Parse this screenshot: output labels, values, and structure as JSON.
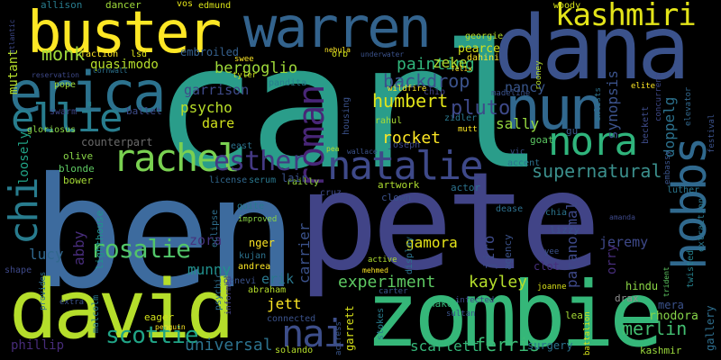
{
  "words": [
    {
      "text": "carl",
      "color": "#2a9d8a"
    },
    {
      "text": "ben",
      "color": "#3d6b9e"
    },
    {
      "text": "pete",
      "color": "#414487"
    },
    {
      "text": "zombie",
      "color": "#35b779"
    },
    {
      "text": "david",
      "color": "#b5de2b"
    },
    {
      "text": "dana",
      "color": "#3b528b"
    },
    {
      "text": "warren",
      "color": "#33638d"
    },
    {
      "text": "buster",
      "color": "#fde725"
    },
    {
      "text": "nun",
      "color": "#31688e"
    },
    {
      "text": "erica",
      "color": "#2c728e"
    },
    {
      "text": "ellie",
      "color": "#287d8e"
    },
    {
      "text": "kashmiri",
      "color": "#e3e419"
    },
    {
      "text": "natalie",
      "color": "#3e4989"
    },
    {
      "text": "rachel",
      "color": "#7ad151"
    },
    {
      "text": "nora",
      "color": "#2fb47c"
    },
    {
      "text": "hobbs",
      "color": "#30698e"
    },
    {
      "text": "chi",
      "color": "#287c8e"
    },
    {
      "text": "esther",
      "color": "#443983"
    },
    {
      "text": "roman",
      "color": "#482677"
    },
    {
      "text": "nai",
      "color": "#3d4e8a"
    },
    {
      "text": "rosalie",
      "color": "#52c569"
    },
    {
      "text": "scottie",
      "color": "#20a486"
    },
    {
      "text": "monk",
      "color": "#a0da39"
    },
    {
      "text": "painting",
      "color": "#31b57b"
    },
    {
      "text": "humbert",
      "color": "#e2e418"
    },
    {
      "text": "backdrop",
      "color": "#3b528b"
    },
    {
      "text": "pluto",
      "color": "#3e4989"
    },
    {
      "text": "supernatural",
      "color": "#3b8f8c"
    },
    {
      "text": "experiment",
      "color": "#5ec962"
    },
    {
      "text": "kayley",
      "color": "#b5de2b"
    },
    {
      "text": "universal",
      "color": "#2c728e"
    },
    {
      "text": "ferris",
      "color": "#3bbb75"
    },
    {
      "text": "scarlett",
      "color": "#35b779"
    },
    {
      "text": "merlin",
      "color": "#42be71"
    },
    {
      "text": "bergoglio",
      "color": "#9fda3a"
    },
    {
      "text": "zeke",
      "color": "#addc30"
    },
    {
      "text": "rocket",
      "color": "#fde725"
    },
    {
      "text": "sally",
      "color": "#95d840"
    },
    {
      "text": "nancy",
      "color": "#39568c"
    },
    {
      "text": "garrison",
      "color": "#3e4a89"
    },
    {
      "text": "psycho",
      "color": "#b8de29"
    },
    {
      "text": "dare",
      "color": "#d0e11c"
    },
    {
      "text": "counterpart",
      "color": "#6a6a6a"
    },
    {
      "text": "quasimodo",
      "color": "#b5de2b"
    },
    {
      "text": "embroiled",
      "color": "#35608d"
    },
    {
      "text": "abby",
      "color": "#472c7a"
    },
    {
      "text": "zora",
      "color": "#46337e"
    },
    {
      "text": "munny",
      "color": "#21908d"
    },
    {
      "text": "erik",
      "color": "#2a788e"
    },
    {
      "text": "jett",
      "color": "#fde725"
    },
    {
      "text": "gamora",
      "color": "#e5e419"
    },
    {
      "text": "jeremy",
      "color": "#3e4989"
    },
    {
      "text": "lucy",
      "color": "#31688e"
    },
    {
      "text": "paranormal",
      "color": "#3e4989"
    },
    {
      "text": "carrier",
      "color": "#3b528b"
    },
    {
      "text": "jiro",
      "color": "#3e4a89"
    },
    {
      "text": "synopsis",
      "color": "#3b528b"
    },
    {
      "text": "doppelg",
      "color": "#2c728e"
    },
    {
      "text": "mutant",
      "color": "#b5de2b"
    },
    {
      "text": "loosely",
      "color": "#20a386"
    },
    {
      "text": "allison",
      "color": "#287c8e"
    },
    {
      "text": "dancer",
      "color": "#9fda3a"
    },
    {
      "text": "vos",
      "color": "#e5e419"
    },
    {
      "text": "edmund",
      "color": "#d8e219"
    },
    {
      "text": "pearce",
      "color": "#d2e21b"
    },
    {
      "text": "georgie",
      "color": "#b5de2b"
    },
    {
      "text": "dahini",
      "color": "#fde725"
    },
    {
      "text": "woody",
      "color": "#d5e21a"
    },
    {
      "text": "orry",
      "color": "#472d7b"
    },
    {
      "text": "gallery",
      "color": "#2e6e8e"
    },
    {
      "text": "hindu",
      "color": "#8bd646"
    },
    {
      "text": "mera",
      "color": "#3b528b"
    },
    {
      "text": "rhodora",
      "color": "#86d549"
    },
    {
      "text": "kashmir",
      "color": "#9bd93c"
    },
    {
      "text": "drax",
      "color": "#8f8f8f"
    },
    {
      "text": "lea",
      "color": "#a5db36"
    },
    {
      "text": "clot",
      "color": "#462f7c"
    },
    {
      "text": "lizzy",
      "color": "#3b528b"
    },
    {
      "text": "chia",
      "color": "#2b748e"
    },
    {
      "text": "joanne",
      "color": "#d8e219"
    },
    {
      "text": "sultan",
      "color": "#3a538b"
    },
    {
      "text": "naked",
      "color": "#35b779"
    },
    {
      "text": "carter",
      "color": "#39568c"
    },
    {
      "text": "dease",
      "color": "#2d708e"
    },
    {
      "text": "actor",
      "color": "#2c738e"
    },
    {
      "text": "artwork",
      "color": "#addc30"
    },
    {
      "text": "clown",
      "color": "#3b528b"
    },
    {
      "text": "cruz",
      "color": "#3e4989"
    },
    {
      "text": "railly",
      "color": "#95d840"
    },
    {
      "text": "luther",
      "color": "#2a768e"
    },
    {
      "text": "embassy",
      "color": "#3a548c"
    },
    {
      "text": "beckett",
      "color": "#3e4c8a"
    },
    {
      "text": "gu",
      "color": "#38588c"
    },
    {
      "text": "goat",
      "color": "#5cc863"
    },
    {
      "text": "mutt",
      "color": "#fde725"
    },
    {
      "text": "rahul",
      "color": "#a8db34"
    },
    {
      "text": "zidler",
      "color": "#2a778e"
    },
    {
      "text": "joseph",
      "color": "#3e4989"
    },
    {
      "text": "chip",
      "color": "#424186"
    },
    {
      "text": "housing",
      "color": "#3b528b"
    },
    {
      "text": "pandita",
      "color": "#287d8e"
    },
    {
      "text": "tyler",
      "color": "#cde11d"
    },
    {
      "text": "swee",
      "color": "#fde725"
    },
    {
      "text": "pope",
      "color": "#9dd93b"
    },
    {
      "text": "ballet",
      "color": "#3e4c8a"
    },
    {
      "text": "swarm",
      "color": "#3f4788"
    },
    {
      "text": "gloriosus",
      "color": "#8bd646"
    },
    {
      "text": "olive",
      "color": "#89d548"
    },
    {
      "text": "blonde",
      "color": "#5ec962"
    },
    {
      "text": "bower",
      "color": "#a5db36"
    },
    {
      "text": "east",
      "color": "#2c728e"
    },
    {
      "text": "license",
      "color": "#31688e"
    },
    {
      "text": "serum",
      "color": "#2a788e"
    },
    {
      "text": "lair",
      "color": "#3b528b"
    },
    {
      "text": "eclipse",
      "color": "#2e6f8e"
    },
    {
      "text": "quite",
      "color": "#29798e"
    },
    {
      "text": "improved",
      "color": "#8bd646"
    },
    {
      "text": "nger",
      "color": "#fde725"
    },
    {
      "text": "kujan",
      "color": "#2c728e"
    },
    {
      "text": "andrea",
      "color": "#fde725"
    },
    {
      "text": "abraham",
      "color": "#b5de2b"
    },
    {
      "text": "genevi",
      "color": "#3b528b"
    },
    {
      "text": "psychic",
      "color": "#2e6e8e"
    },
    {
      "text": "informed",
      "color": "#424186"
    },
    {
      "text": "eager",
      "color": "#d2e21b"
    },
    {
      "text": "penguin",
      "color": "#fde725"
    },
    {
      "text": "connected",
      "color": "#3b528b"
    },
    {
      "text": "solando",
      "color": "#b5de2b"
    },
    {
      "text": "phillip",
      "color": "#472c7a"
    },
    {
      "text": "provides",
      "color": "#2e6f8e"
    },
    {
      "text": "shape",
      "color": "#3e4989"
    },
    {
      "text": "extra",
      "color": "#3b528b"
    },
    {
      "text": "malcolm",
      "color": "#2a788e"
    },
    {
      "text": "lighthouse",
      "color": "#20928c"
    },
    {
      "text": "garrett",
      "color": "#d8e219"
    },
    {
      "text": "actress",
      "color": "#39568c"
    },
    {
      "text": "stokes",
      "color": "#287c8e"
    },
    {
      "text": "display",
      "color": "#2c728e"
    },
    {
      "text": "active",
      "color": "#addc30"
    },
    {
      "text": "mehmed",
      "color": "#fde725"
    },
    {
      "text": "infected",
      "color": "#3e4989"
    },
    {
      "text": "agency",
      "color": "#3b528b"
    },
    {
      "text": "surgery",
      "color": "#2c728e"
    },
    {
      "text": "battalion",
      "color": "#d5e21a"
    },
    {
      "text": "twisted",
      "color": "#26828e"
    },
    {
      "text": "extraction",
      "color": "#2a788e"
    },
    {
      "text": "trident",
      "color": "#5ec962"
    },
    {
      "text": "festival",
      "color": "#3b528b"
    },
    {
      "text": "elevator",
      "color": "#31688e"
    },
    {
      "text": "elite",
      "color": "#fde725"
    },
    {
      "text": "concurrent",
      "color": "#3e4989"
    },
    {
      "text": "enlists",
      "color": "#2c728e"
    },
    {
      "text": "madeline",
      "color": "#3b528b"
    },
    {
      "text": "wildfire",
      "color": "#fde725"
    },
    {
      "text": "rooney",
      "color": "#b5de2b"
    },
    {
      "text": "felix",
      "color": "#fde725"
    },
    {
      "text": "reservation",
      "color": "#3e4989"
    },
    {
      "text": "faction",
      "color": "#fde725"
    },
    {
      "text": "lsd",
      "color": "#d8e219"
    },
    {
      "text": "cornwall",
      "color": "#2c728e"
    },
    {
      "text": "nebula",
      "color": "#fde725"
    },
    {
      "text": "underwater",
      "color": "#3b528b"
    },
    {
      "text": "orb",
      "color": "#d2e21b"
    },
    {
      "text": "atlantic",
      "color": "#3e4989"
    },
    {
      "text": "vic",
      "color": "#3b528b"
    },
    {
      "text": "accent",
      "color": "#2c728e"
    },
    {
      "text": "pea",
      "color": "#b5de2b"
    },
    {
      "text": "wallace",
      "color": "#3b528b"
    },
    {
      "text": "amanda",
      "color": "#3e4989"
    },
    {
      "text": "yee",
      "color": "#3b528b"
    }
  ]
}
